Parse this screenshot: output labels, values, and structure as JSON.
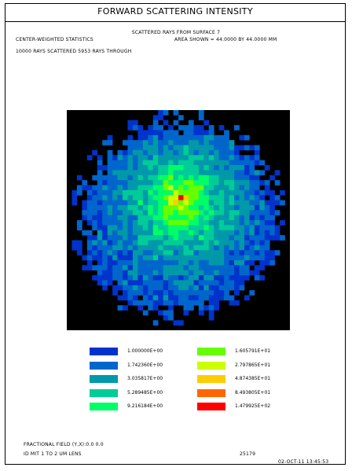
{
  "header": {
    "title": "FORWARD SCATTERING INTENSITY"
  },
  "info": {
    "subtitle": "SCATTERED RAYS FROM SURFACE  7",
    "stats": "CENTER-WEIGHTED STATISTICS",
    "area": "AREA SHOWN =   44.0000 BY   44.0000 MM",
    "rays": "10000 RAYS SCATTERED    5953 RAYS THROUGH"
  },
  "chart_data": {
    "type": "heatmap",
    "grid": {
      "columns": 44,
      "rows": 44
    },
    "scale": "log",
    "value_range": [
      1.0,
      147.9
    ],
    "colors": [
      "#0033cc",
      "#0066cc",
      "#0099aa",
      "#00cc99",
      "#00ff66",
      "#66ff00",
      "#ccff00",
      "#ffcc00",
      "#ff6600",
      "#ff0000"
    ],
    "background": "#000000",
    "peak": {
      "column": 22,
      "row": 17,
      "value": 147.9
    },
    "legend": [
      {
        "label": "1.000000E+00",
        "color": "#0033cc"
      },
      {
        "label": "1.742360E+00",
        "color": "#0066cc"
      },
      {
        "label": "3.035817E+00",
        "color": "#0099aa"
      },
      {
        "label": "5.289485E+00",
        "color": "#00cc99"
      },
      {
        "label": "9.216184E+00",
        "color": "#00ff66"
      },
      {
        "label": "1.605791E+01",
        "color": "#66ff00"
      },
      {
        "label": "2.797865E+01",
        "color": "#ccff00"
      },
      {
        "label": "4.874385E+01",
        "color": "#ffcc00"
      },
      {
        "label": "8.493805E+01",
        "color": "#ff6600"
      },
      {
        "label": "1.479925E+02",
        "color": "#ff0000"
      }
    ]
  },
  "footer": {
    "field": "FRACTIONAL FIELD (Y,X):0.0   0.0",
    "limit": "ID MIT 1 TO 2 UM LENS",
    "code": "25179",
    "date": "02-OCT-11   13:45:53"
  }
}
